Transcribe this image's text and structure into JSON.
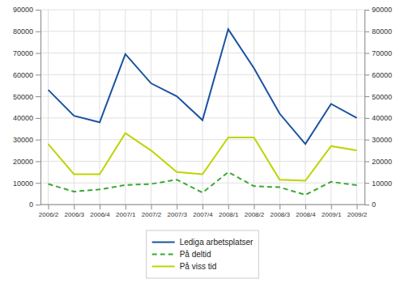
{
  "chart_data": {
    "type": "line",
    "categories": [
      "2006/2",
      "2006/3",
      "2006/4",
      "2007/1",
      "2007/2",
      "2007/3",
      "2007/4",
      "2008/1",
      "2008/2",
      "2008/3",
      "2008/4",
      "2009/1",
      "2009/2"
    ],
    "series": [
      {
        "name": "Lediga arbetsplatser",
        "color": "#1a52a0",
        "line_style": "solid",
        "values": [
          53000,
          41000,
          38000,
          69500,
          56000,
          50000,
          39000,
          81000,
          63000,
          42000,
          28000,
          46500,
          40000
        ]
      },
      {
        "name": "På deltid",
        "color": "#3aaa35",
        "line_style": "dashed",
        "values": [
          9500,
          6000,
          7000,
          9000,
          9500,
          11500,
          5500,
          15000,
          8500,
          8000,
          4500,
          10500,
          9000
        ]
      },
      {
        "name": "På viss tid",
        "color": "#bfd400",
        "line_style": "solid",
        "values": [
          28000,
          14000,
          14000,
          33000,
          25000,
          15000,
          14000,
          31000,
          31000,
          11500,
          11000,
          27000,
          25000
        ]
      }
    ],
    "ylim": [
      0,
      90000
    ],
    "yticks": [
      0,
      10000,
      20000,
      30000,
      40000,
      50000,
      60000,
      70000,
      80000,
      90000
    ],
    "y2lim": [
      0,
      90000
    ],
    "y2ticks": [
      0,
      10000,
      20000,
      30000,
      40000,
      50000,
      60000,
      70000,
      80000,
      90000
    ],
    "grid": true,
    "legend": "bottom"
  }
}
